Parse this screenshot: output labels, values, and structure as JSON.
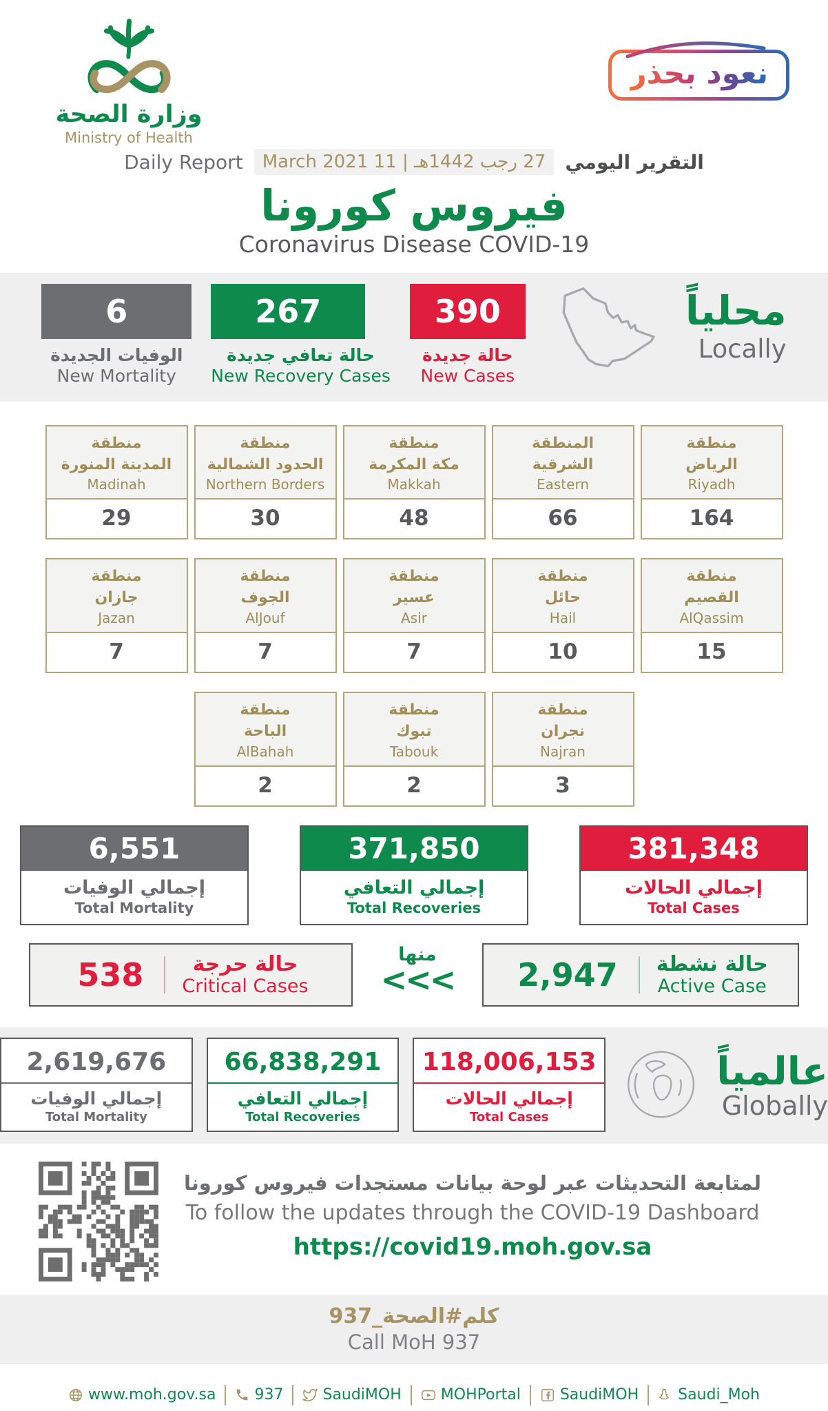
{
  "colors": {
    "green": "#0e8a4d",
    "red": "#e11d3e",
    "gray": "#6d6e71",
    "gold": "#a79364",
    "text_gray": "#58595b",
    "band": "#efeff0"
  },
  "header": {
    "logo_ar": "وزارة الصحة",
    "logo_en": "Ministry of Health",
    "badge": "نعود بحذر",
    "report_en": "Daily Report",
    "report_date": "27 رجب 1442هـ | 11 March 2021",
    "report_ar": "التقرير اليومي",
    "title_ar": "فيروس كورونا",
    "title_en": "Coronavirus Disease COVID-19"
  },
  "locally": {
    "heading_ar": "محلياً",
    "heading_en": "Locally",
    "new_mortality": {
      "value": "6",
      "ar": "الوفيات الجديدة",
      "en": "New Mortality"
    },
    "new_recoveries": {
      "value": "267",
      "ar": "حالة تعافي جديدة",
      "en": "New Recovery Cases"
    },
    "new_cases": {
      "value": "390",
      "ar": "حالة جديدة",
      "en": "New Cases"
    }
  },
  "regions": {
    "row1": [
      {
        "ar1": "منطقة",
        "ar2": "المدينة المنورة",
        "en": "Madinah",
        "value": "29"
      },
      {
        "ar1": "منطقة",
        "ar2": "الحدود الشمالية",
        "en": "Northern Borders",
        "value": "30"
      },
      {
        "ar1": "منطقة",
        "ar2": "مكة المكرمة",
        "en": "Makkah",
        "value": "48"
      },
      {
        "ar1": "المنطقة",
        "ar2": "الشرقية",
        "en": "Eastern",
        "value": "66"
      },
      {
        "ar1": "منطقة",
        "ar2": "الرياض",
        "en": "Riyadh",
        "value": "164"
      }
    ],
    "row2": [
      {
        "ar1": "منطقة",
        "ar2": "جازان",
        "en": "Jazan",
        "value": "7"
      },
      {
        "ar1": "منطقة",
        "ar2": "الجوف",
        "en": "AlJouf",
        "value": "7"
      },
      {
        "ar1": "منطقة",
        "ar2": "عسير",
        "en": "Asir",
        "value": "7"
      },
      {
        "ar1": "منطقة",
        "ar2": "حائل",
        "en": "Hail",
        "value": "10"
      },
      {
        "ar1": "منطقة",
        "ar2": "القصيم",
        "en": "AlQassim",
        "value": "15"
      }
    ],
    "row3": [
      {
        "ar1": "منطقة",
        "ar2": "الباحة",
        "en": "AlBahah",
        "value": "2"
      },
      {
        "ar1": "منطقة",
        "ar2": "تبوك",
        "en": "Tabouk",
        "value": "2"
      },
      {
        "ar1": "منطقة",
        "ar2": "نجران",
        "en": "Najran",
        "value": "3"
      }
    ]
  },
  "totals": {
    "mortality": {
      "value": "6,551",
      "ar": "إجمالي الوفيات",
      "en": "Total Mortality"
    },
    "recoveries": {
      "value": "371,850",
      "ar": "إجمالي التعافي",
      "en": "Total Recoveries"
    },
    "cases": {
      "value": "381,348",
      "ar": "إجمالي الحالات",
      "en": "Total Cases"
    }
  },
  "breakdown": {
    "critical": {
      "value": "538",
      "ar": "حالة حرجة",
      "en": "Critical Cases"
    },
    "of_which": "منها",
    "chevrons": "<<<",
    "active": {
      "value": "2,947",
      "ar": "حالة نشطة",
      "en": "Active Case"
    }
  },
  "globally": {
    "heading_ar": "عالمياً",
    "heading_en": "Globally",
    "mortality": {
      "value": "2,619,676",
      "ar": "إجمالي الوفيات",
      "en": "Total Mortality"
    },
    "recoveries": {
      "value": "66,838,291",
      "ar": "إجمالي التعافي",
      "en": "Total Recoveries"
    },
    "cases": {
      "value": "118,006,153",
      "ar": "إجمالي الحالات",
      "en": "Total Cases"
    }
  },
  "dashboard": {
    "ar": "لمتابعة التحديثات عبر لوحة بيانات مستجدات فيروس كورونا",
    "en": "To follow the updates through the COVID-19 Dashboard",
    "url": "https://covid19.moh.gov.sa"
  },
  "call": {
    "ar": "كلم#الصحة_937",
    "en": "Call MoH 937"
  },
  "footer": {
    "items": [
      {
        "icon": "globe-icon",
        "text": "www.moh.gov.sa"
      },
      {
        "icon": "phone-icon",
        "text": "937"
      },
      {
        "icon": "twitter-icon",
        "text": "SaudiMOH"
      },
      {
        "icon": "youtube-icon",
        "text": "MOHPortal"
      },
      {
        "icon": "facebook-icon",
        "text": "SaudiMOH"
      },
      {
        "icon": "snapchat-icon",
        "text": "Saudi_Moh"
      }
    ]
  }
}
